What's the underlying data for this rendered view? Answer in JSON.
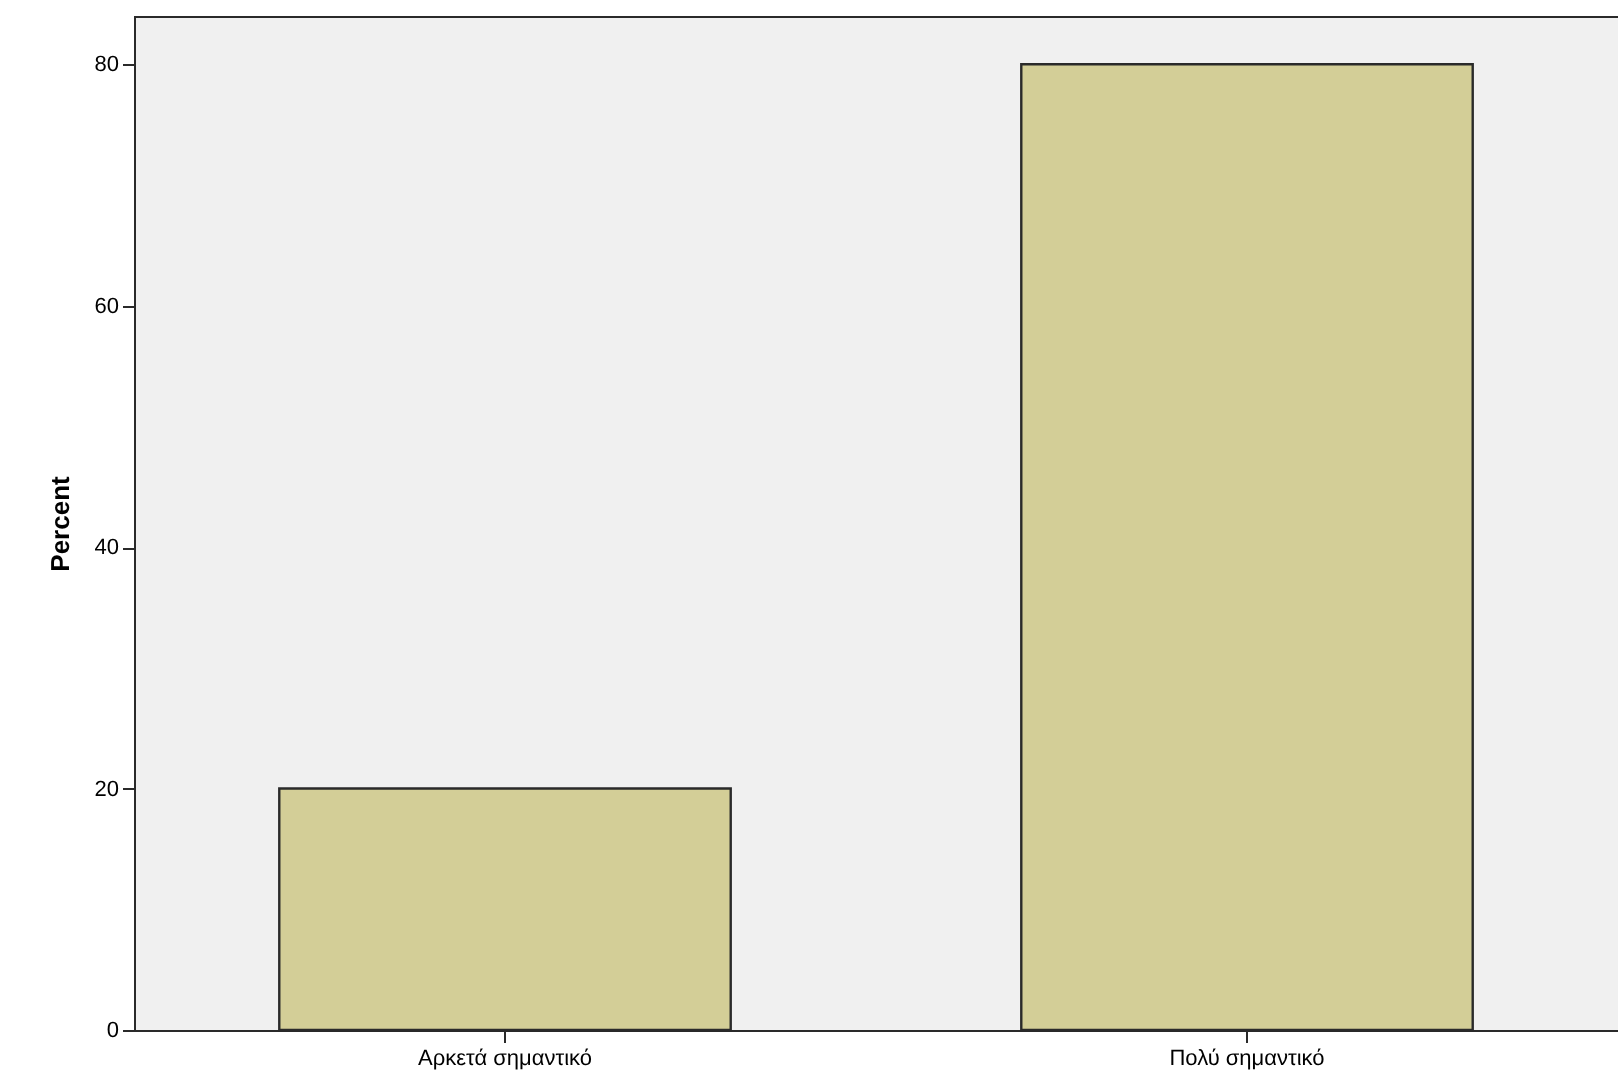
{
  "chart_data": {
    "type": "bar",
    "ylabel": "Percent",
    "categories": [
      "Αρκετά σημαντικό",
      "Πολύ σημαντικό"
    ],
    "values": [
      20,
      80
    ],
    "color": "#d3ce97",
    "ylim": [
      0,
      84
    ],
    "yticks": [
      0,
      20,
      40,
      60,
      80
    ],
    "grid": false
  }
}
